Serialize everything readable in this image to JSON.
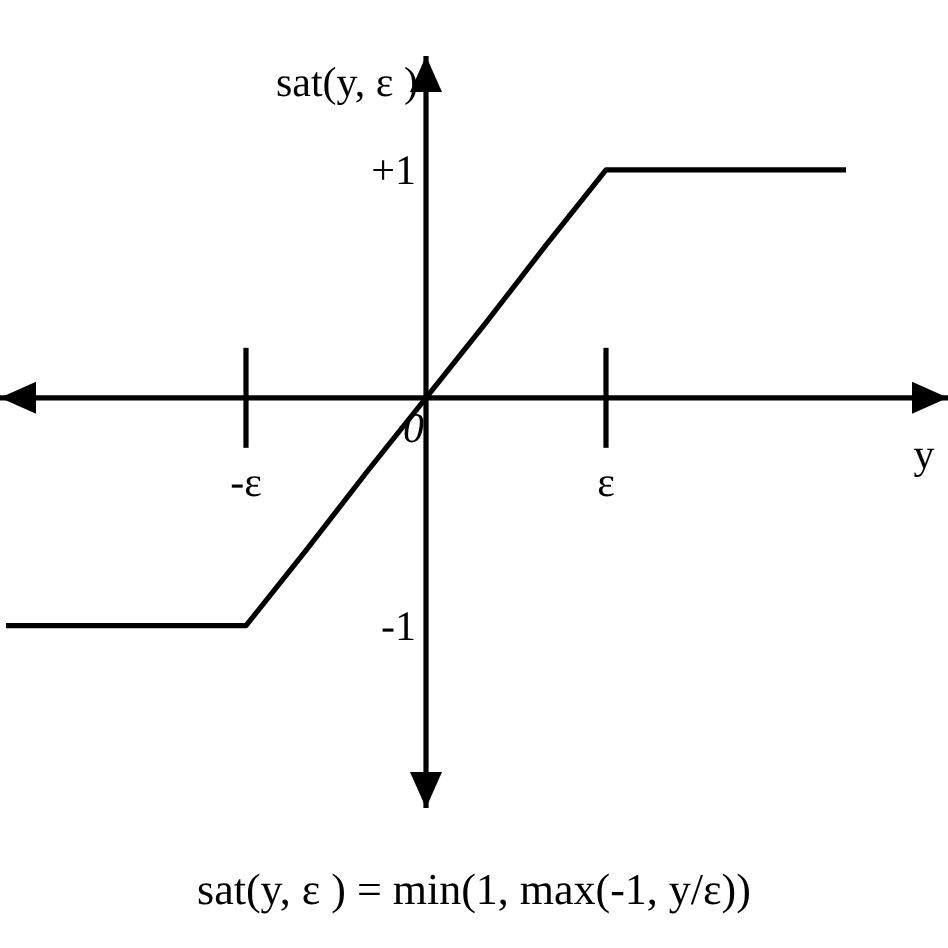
{
  "chart_data": {
    "type": "line",
    "xlabel": "y",
    "ylabel": "sat(y, ε )",
    "annotations": [
      "sat(y, ε ) = min(1, max(-1, y/ε))"
    ],
    "categories": [
      null,
      null,
      null,
      null,
      "-ε",
      null,
      null,
      "0",
      null,
      null,
      "ε",
      null,
      null,
      null,
      null
    ],
    "series": [
      {
        "color": "#000000",
        "values": [
          -1,
          -1,
          -1,
          -1,
          -1,
          -0.67,
          -0.33,
          0,
          0.33,
          0.67,
          1,
          1,
          1,
          1,
          1
        ]
      }
    ],
    "ylim": [
      -1.8,
      1.5
    ],
    "yticks": [
      {
        "value": 1,
        "label": "+1"
      },
      {
        "value": -1,
        "label": "-1"
      }
    ],
    "line_style": "solid"
  }
}
